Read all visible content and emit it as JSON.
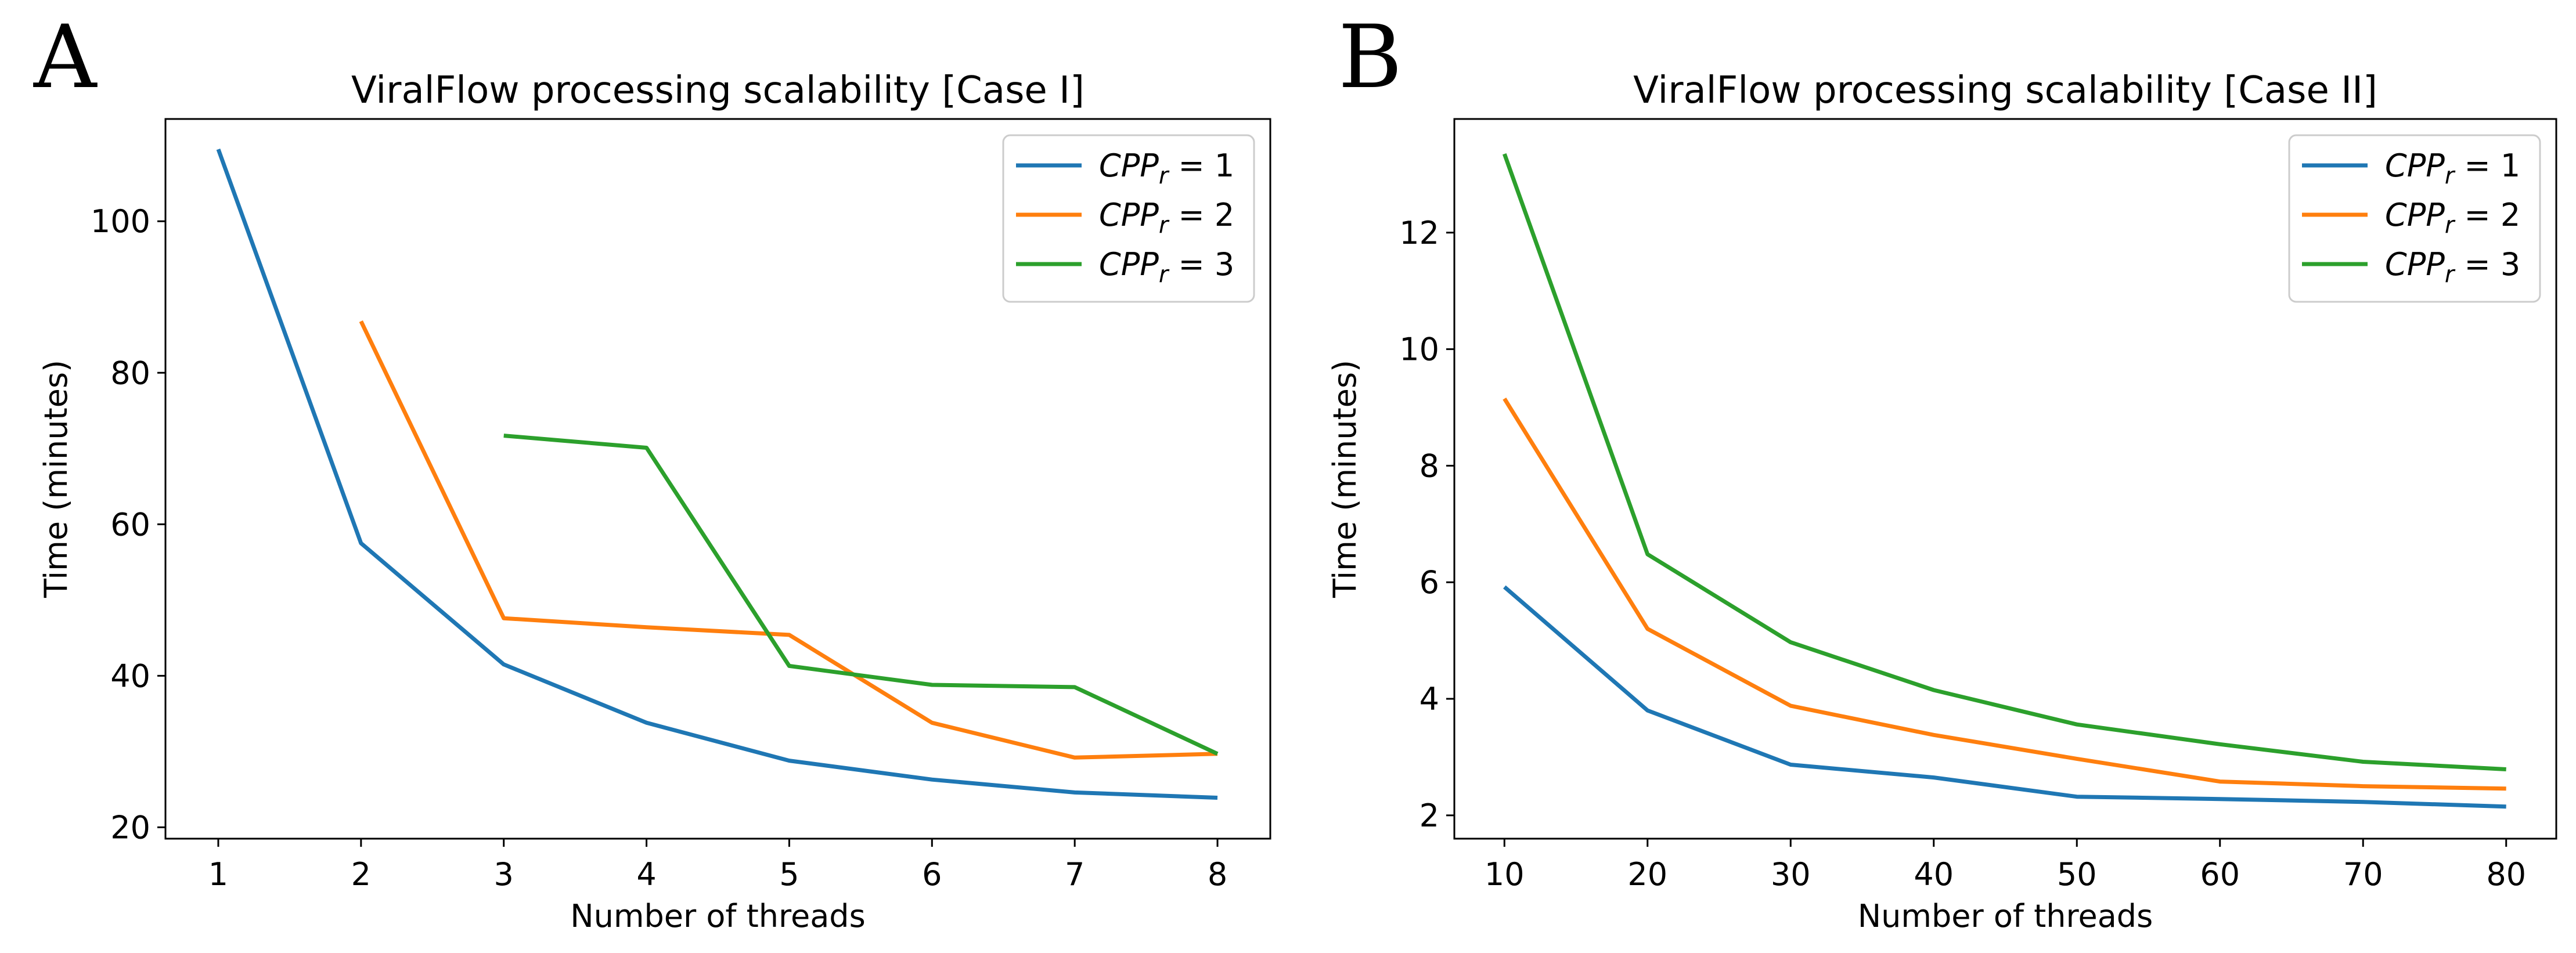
{
  "chart_data": [
    {
      "type": "line",
      "panel_label": "A",
      "title": "ViralFlow processing scalability [Case I]",
      "xlabel": "Number of threads",
      "ylabel": "Time (minutes)",
      "xlim": [
        0.63,
        8.37
      ],
      "ylim": [
        18.5,
        113.5
      ],
      "xticks": [
        1,
        2,
        3,
        4,
        5,
        6,
        7,
        8
      ],
      "yticks": [
        20,
        40,
        60,
        80,
        100
      ],
      "legend_position": "top-right",
      "series": [
        {
          "name": "CPP_r = 1",
          "legend": {
            "base": "CPP",
            "sub": "r",
            "rest": " = 1"
          },
          "color": "#1f77b4",
          "x": [
            1,
            2,
            3,
            4,
            5,
            6,
            7,
            8
          ],
          "values": [
            109.5,
            57.5,
            41.5,
            33.8,
            28.8,
            26.3,
            24.6,
            23.9
          ]
        },
        {
          "name": "CPP_r = 2",
          "legend": {
            "base": "CPP",
            "sub": "r",
            "rest": " = 2"
          },
          "color": "#ff7f0e",
          "x": [
            2,
            3,
            4,
            5,
            6,
            7,
            8
          ],
          "values": [
            86.8,
            47.6,
            46.4,
            45.4,
            33.8,
            29.2,
            29.7
          ]
        },
        {
          "name": "CPP_r = 3",
          "legend": {
            "base": "CPP",
            "sub": "r",
            "rest": " = 3"
          },
          "color": "#2ca02c",
          "x": [
            3,
            4,
            5,
            6,
            7,
            8
          ],
          "values": [
            71.7,
            70.1,
            41.3,
            38.8,
            38.5,
            29.7
          ]
        }
      ]
    },
    {
      "type": "line",
      "panel_label": "B",
      "title": "ViralFlow processing scalability [Case II]",
      "xlabel": "Number of threads",
      "ylabel": "Time (minutes)",
      "xlim": [
        6.5,
        83.5
      ],
      "ylim": [
        1.6,
        13.95
      ],
      "xticks": [
        10,
        20,
        30,
        40,
        50,
        60,
        70,
        80
      ],
      "yticks": [
        2,
        4,
        6,
        8,
        10,
        12
      ],
      "legend_position": "top-right",
      "series": [
        {
          "name": "CPP_r = 1",
          "legend": {
            "base": "CPP",
            "sub": "r",
            "rest": " = 1"
          },
          "color": "#1f77b4",
          "x": [
            10,
            20,
            30,
            40,
            50,
            60,
            70,
            80
          ],
          "values": [
            5.92,
            3.8,
            2.87,
            2.65,
            2.32,
            2.28,
            2.23,
            2.15
          ]
        },
        {
          "name": "CPP_r = 2",
          "legend": {
            "base": "CPP",
            "sub": "r",
            "rest": " = 2"
          },
          "color": "#ff7f0e",
          "x": [
            10,
            20,
            30,
            40,
            50,
            60,
            70,
            80
          ],
          "values": [
            9.15,
            5.2,
            3.88,
            3.38,
            2.97,
            2.58,
            2.5,
            2.46
          ]
        },
        {
          "name": "CPP_r = 3",
          "legend": {
            "base": "CPP",
            "sub": "r",
            "rest": " = 3"
          },
          "color": "#2ca02c",
          "x": [
            10,
            20,
            30,
            40,
            50,
            60,
            70,
            80
          ],
          "values": [
            13.35,
            6.48,
            4.97,
            4.15,
            3.56,
            3.22,
            2.92,
            2.79
          ]
        }
      ]
    }
  ]
}
